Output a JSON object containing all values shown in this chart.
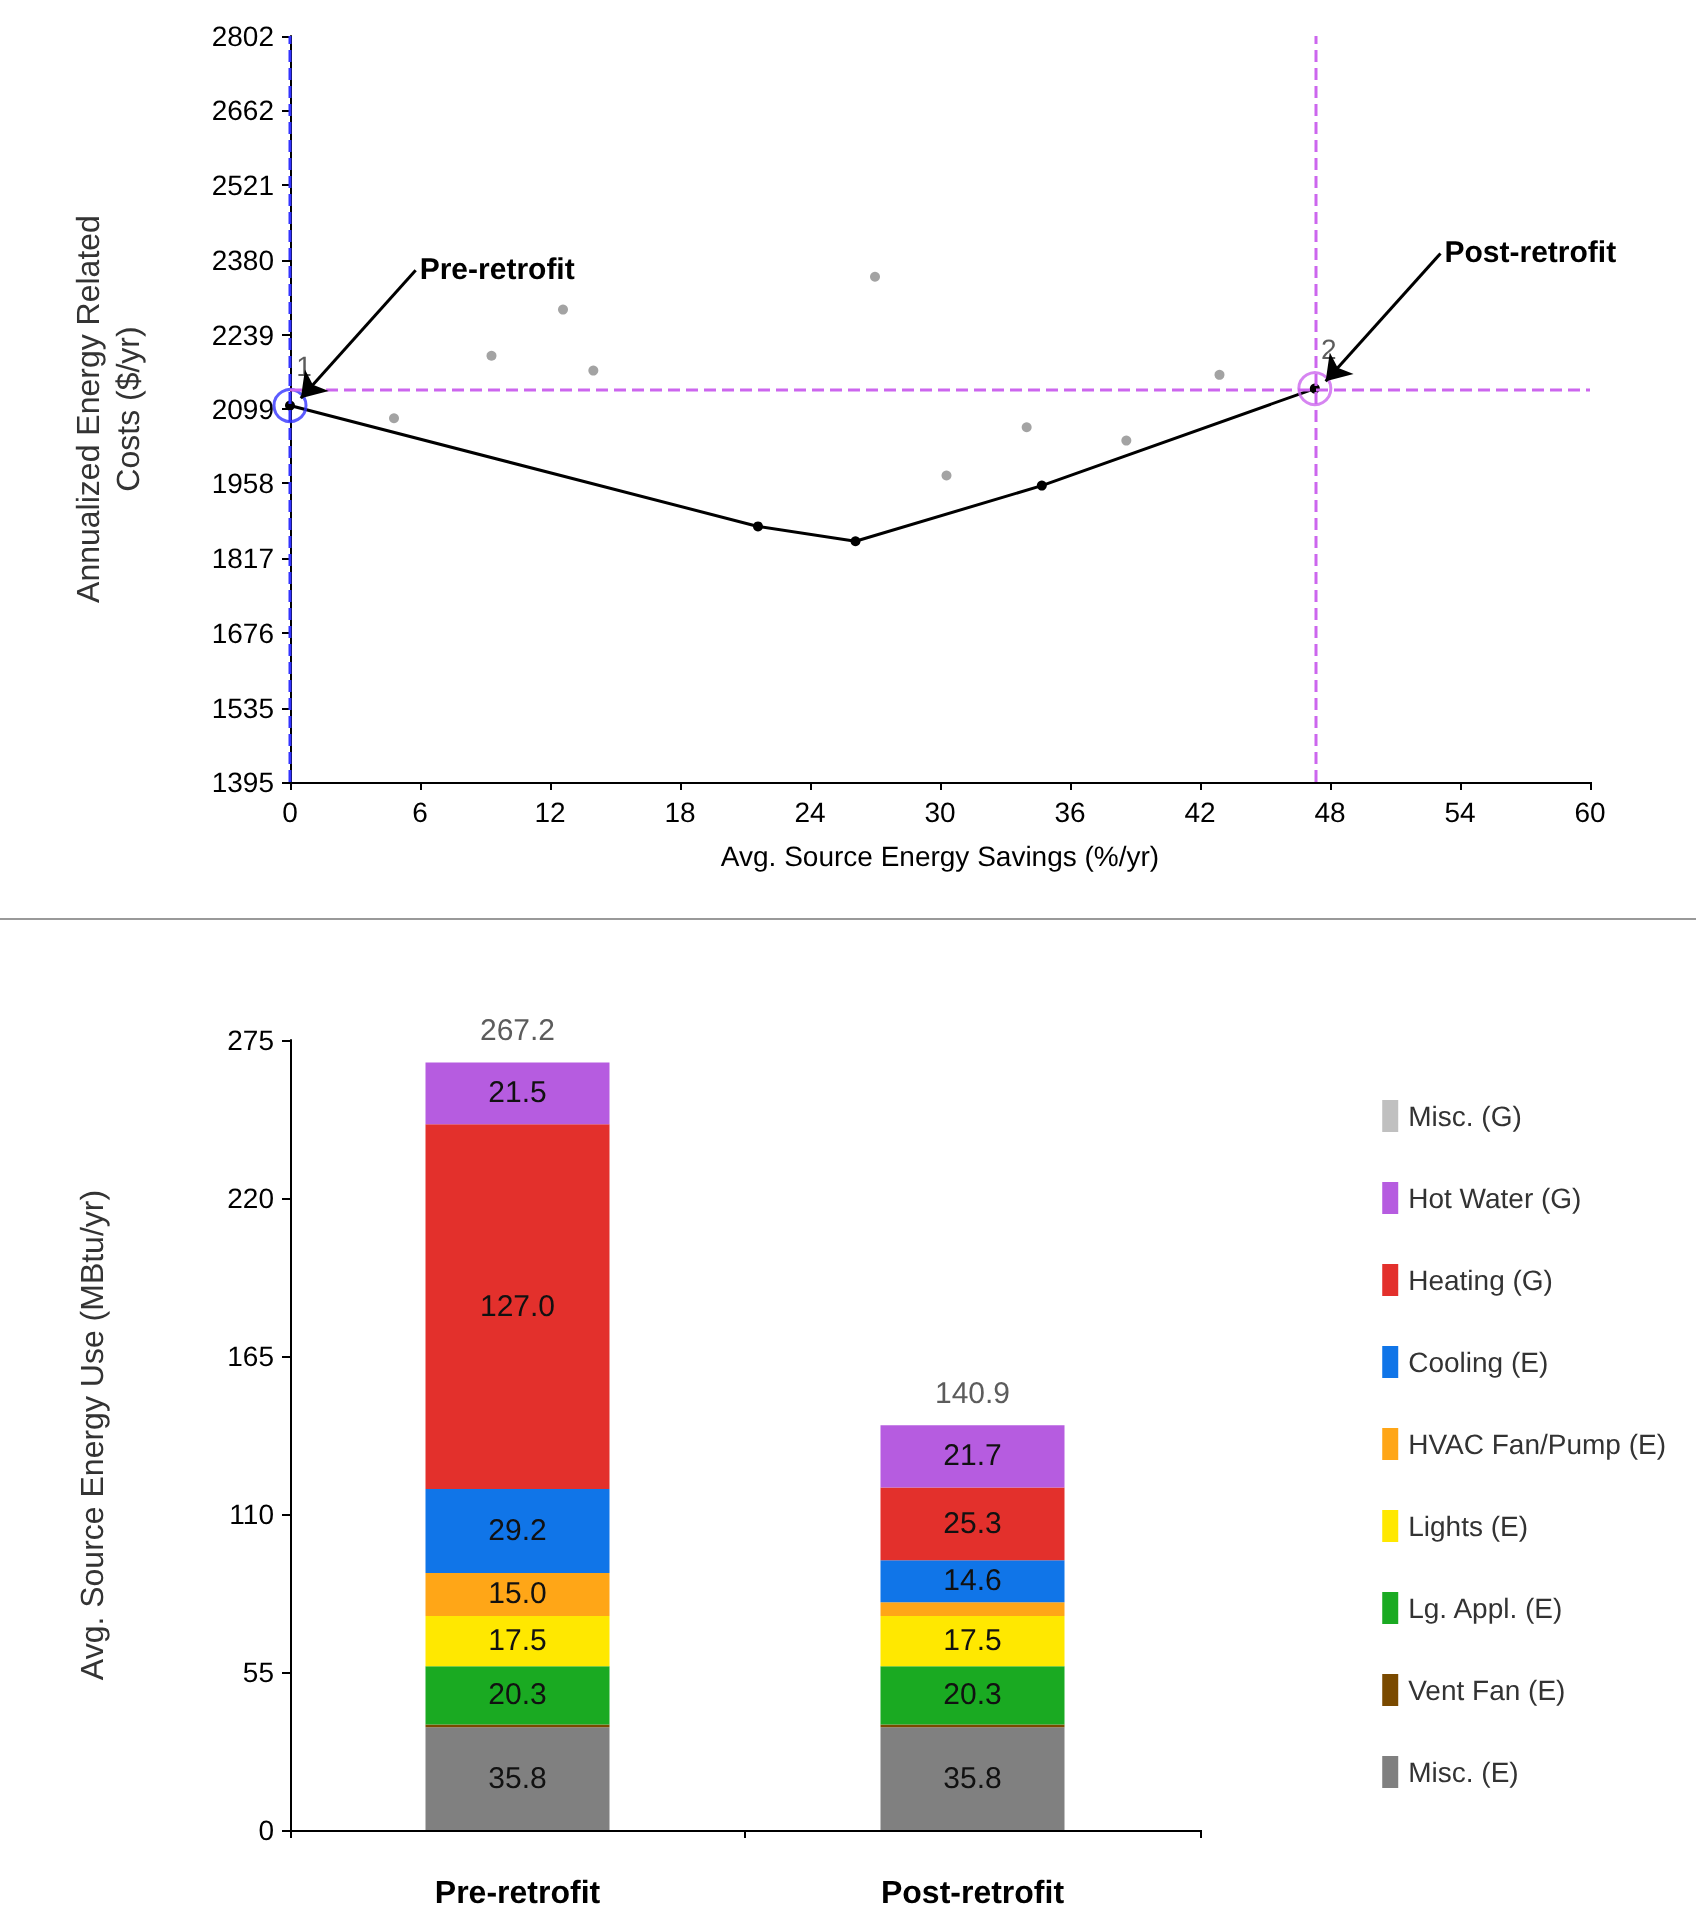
{
  "chart_data": [
    {
      "type": "scatter",
      "xlabel": "Avg. Source Energy Savings (%/yr)",
      "ylabel": "Annualized Energy Related\nCosts ($/yr)",
      "xlim": [
        0,
        60
      ],
      "xticks": [
        0,
        6,
        12,
        18,
        24,
        30,
        36,
        42,
        48,
        54,
        60
      ],
      "ylim": [
        1395,
        2802
      ],
      "yticks": [
        1395,
        1535,
        1676,
        1817,
        1958,
        2099,
        2239,
        2380,
        2521,
        2662,
        2802
      ],
      "grid": false,
      "legend": false,
      "marker": "circle",
      "series": [
        {
          "type": "scatter",
          "color": "#8c8c8c",
          "x": [
            4.8,
            9.3,
            12.6,
            14.0,
            27.0,
            30.3,
            34.0,
            38.6,
            42.9
          ],
          "values": [
            2081,
            2199,
            2286,
            2171,
            2348,
            1973,
            2064,
            2039,
            2163
          ]
        },
        {
          "type": "line",
          "color": "#000000",
          "line_style": "solid",
          "x": [
            0,
            21.6,
            26.1,
            34.7,
            47.3
          ],
          "values": [
            2105,
            1877,
            1849,
            1954,
            2137
          ]
        },
        {
          "type": "scatter",
          "name": "1",
          "color": "#3333ff",
          "x": [
            0
          ],
          "values": [
            2105
          ]
        },
        {
          "type": "scatter",
          "name": "2",
          "color": "#cc66ee",
          "x": [
            47.3
          ],
          "values": [
            2137
          ]
        }
      ],
      "ref_lines": [
        {
          "axis": "y",
          "value": 2137,
          "color": "#cc66ee",
          "line_style": "dashed"
        },
        {
          "axis": "x",
          "value": 47.3,
          "color": "#cc66ee",
          "line_style": "dashed"
        },
        {
          "axis": "x",
          "value": 0,
          "color": "#3333ff",
          "line_style": "dashed"
        }
      ],
      "annotations": [
        {
          "text": "Pre-retrofit",
          "x": 0,
          "y": 2105
        },
        {
          "text": "Post-retrofit",
          "x": 47.3,
          "y": 2137
        }
      ]
    },
    {
      "type": "bar",
      "stacked": true,
      "ylabel": "Avg. Source Energy Use (MBtu/yr)",
      "categories": [
        "Pre-retrofit",
        "Post-retrofit"
      ],
      "ylim": [
        0,
        275
      ],
      "yticks": [
        0,
        55,
        110,
        165,
        220,
        275
      ],
      "grid": false,
      "legend": "right",
      "totals": [
        "267.2",
        "140.9"
      ],
      "series": [
        {
          "name": "Misc. (E)",
          "color": "#808080",
          "values": [
            35.8,
            35.8
          ],
          "value_labels": [
            "35.8",
            "35.8"
          ]
        },
        {
          "name": "Vent Fan (E)",
          "color": "#7a4a00",
          "values": [
            0.9,
            0.9
          ],
          "value_labels": [
            null,
            null
          ]
        },
        {
          "name": "Lg. Appl. (E)",
          "color": "#1aaa22",
          "values": [
            20.3,
            20.3
          ],
          "value_labels": [
            "20.3",
            "20.3"
          ]
        },
        {
          "name": "Lights (E)",
          "color": "#ffe800",
          "values": [
            17.5,
            17.5
          ],
          "value_labels": [
            "17.5",
            "17.5"
          ]
        },
        {
          "name": "HVAC Fan/Pump (E)",
          "color": "#ffa617",
          "values": [
            15.0,
            4.8
          ],
          "value_labels": [
            "15.0",
            null
          ]
        },
        {
          "name": "Cooling (E)",
          "color": "#1075e8",
          "values": [
            29.2,
            14.6
          ],
          "value_labels": [
            "29.2",
            "14.6"
          ]
        },
        {
          "name": "Heating (G)",
          "color": "#e3302c",
          "values": [
            127.0,
            25.3
          ],
          "value_labels": [
            "127.0",
            "25.3"
          ]
        },
        {
          "name": "Hot Water (G)",
          "color": "#b65ce0",
          "values": [
            21.5,
            21.7
          ],
          "value_labels": [
            "21.5",
            "21.7"
          ]
        },
        {
          "name": "Misc. (G)",
          "color": "#c0c0c0",
          "values": [
            0,
            0
          ],
          "value_labels": [
            null,
            null
          ]
        }
      ]
    }
  ]
}
